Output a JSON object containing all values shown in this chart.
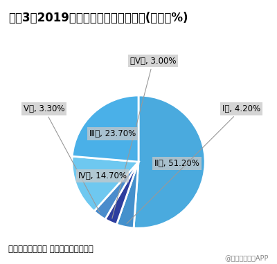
{
  "title": "图表3：2019年全国流域总体水质状况(单位：%)",
  "source_text": "资料来源：环保部 前瞻产业研究院整理",
  "watermark": "@前瞻经济学人APP",
  "plot_values": [
    51.2,
    4.2,
    3.0,
    3.3,
    14.7,
    23.7
  ],
  "plot_colors": [
    "#4aaade",
    "#4aaade",
    "#2e3f9e",
    "#4488cc",
    "#6ec4ec",
    "#4aaade"
  ],
  "plot_labels": [
    "II类, 51.20%",
    "I类, 4.20%",
    "劣V类, 3.00%",
    "V类, 3.30%",
    "IV类, 14.70%",
    "III类, 23.70%"
  ],
  "startangle": 90,
  "bg_color": "#ffffff",
  "title_fontsize": 12,
  "label_fontsize": 8.5,
  "source_fontsize": 8.5,
  "watermark_fontsize": 7,
  "edge_color": "#ffffff",
  "edge_linewidth": 2.0
}
